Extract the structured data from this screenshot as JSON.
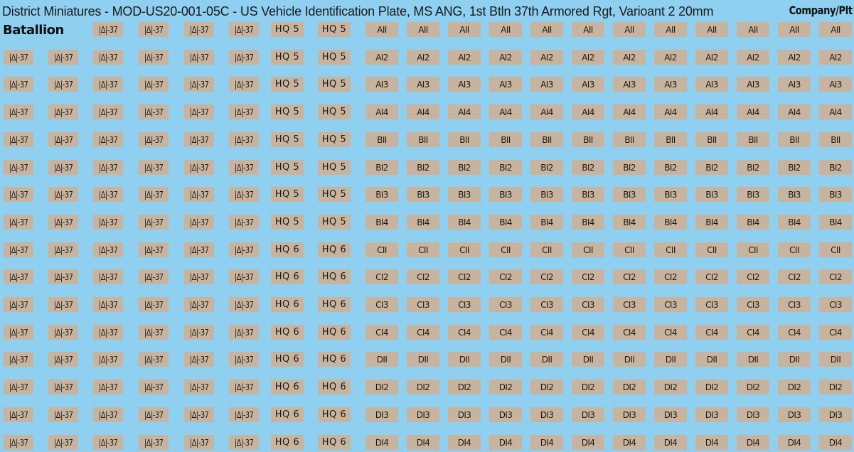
{
  "title": "District Miniatures - MOD-US20-001-05C - US Vehicle Identification Plate, MS ANG, 1st Btln 37th Armored Rgt, Varioant 2 20mm",
  "battalion_label": "Batallion",
  "company_label": "Company/Plt",
  "colors": {
    "background": "#8fcff0",
    "plate": "#c8b49e",
    "text": "#1d1a16"
  },
  "battalion_plate_text": "|Δ|-37",
  "rows": [
    {
      "bn_count": 4,
      "hq": "HQ 5",
      "co": "AII"
    },
    {
      "bn_count": 6,
      "hq": "HQ 5",
      "co": "AI2"
    },
    {
      "bn_count": 6,
      "hq": "HQ 5",
      "co": "AI3"
    },
    {
      "bn_count": 6,
      "hq": "HQ 5",
      "co": "AI4"
    },
    {
      "bn_count": 6,
      "hq": "HQ 5",
      "co": "BII"
    },
    {
      "bn_count": 6,
      "hq": "HQ 5",
      "co": "BI2"
    },
    {
      "bn_count": 6,
      "hq": "HQ 5",
      "co": "BI3"
    },
    {
      "bn_count": 6,
      "hq": "HQ 5",
      "co": "BI4"
    },
    {
      "bn_count": 6,
      "hq": "HQ 6",
      "co": "CII"
    },
    {
      "bn_count": 6,
      "hq": "HQ 6",
      "co": "CI2"
    },
    {
      "bn_count": 6,
      "hq": "HQ 6",
      "co": "CI3"
    },
    {
      "bn_count": 6,
      "hq": "HQ 6",
      "co": "CI4"
    },
    {
      "bn_count": 6,
      "hq": "HQ 6",
      "co": "DII"
    },
    {
      "bn_count": 6,
      "hq": "HQ 6",
      "co": "DI2"
    },
    {
      "bn_count": 6,
      "hq": "HQ 6",
      "co": "DI3"
    },
    {
      "bn_count": 6,
      "hq": "HQ 6",
      "co": "DI4"
    }
  ]
}
